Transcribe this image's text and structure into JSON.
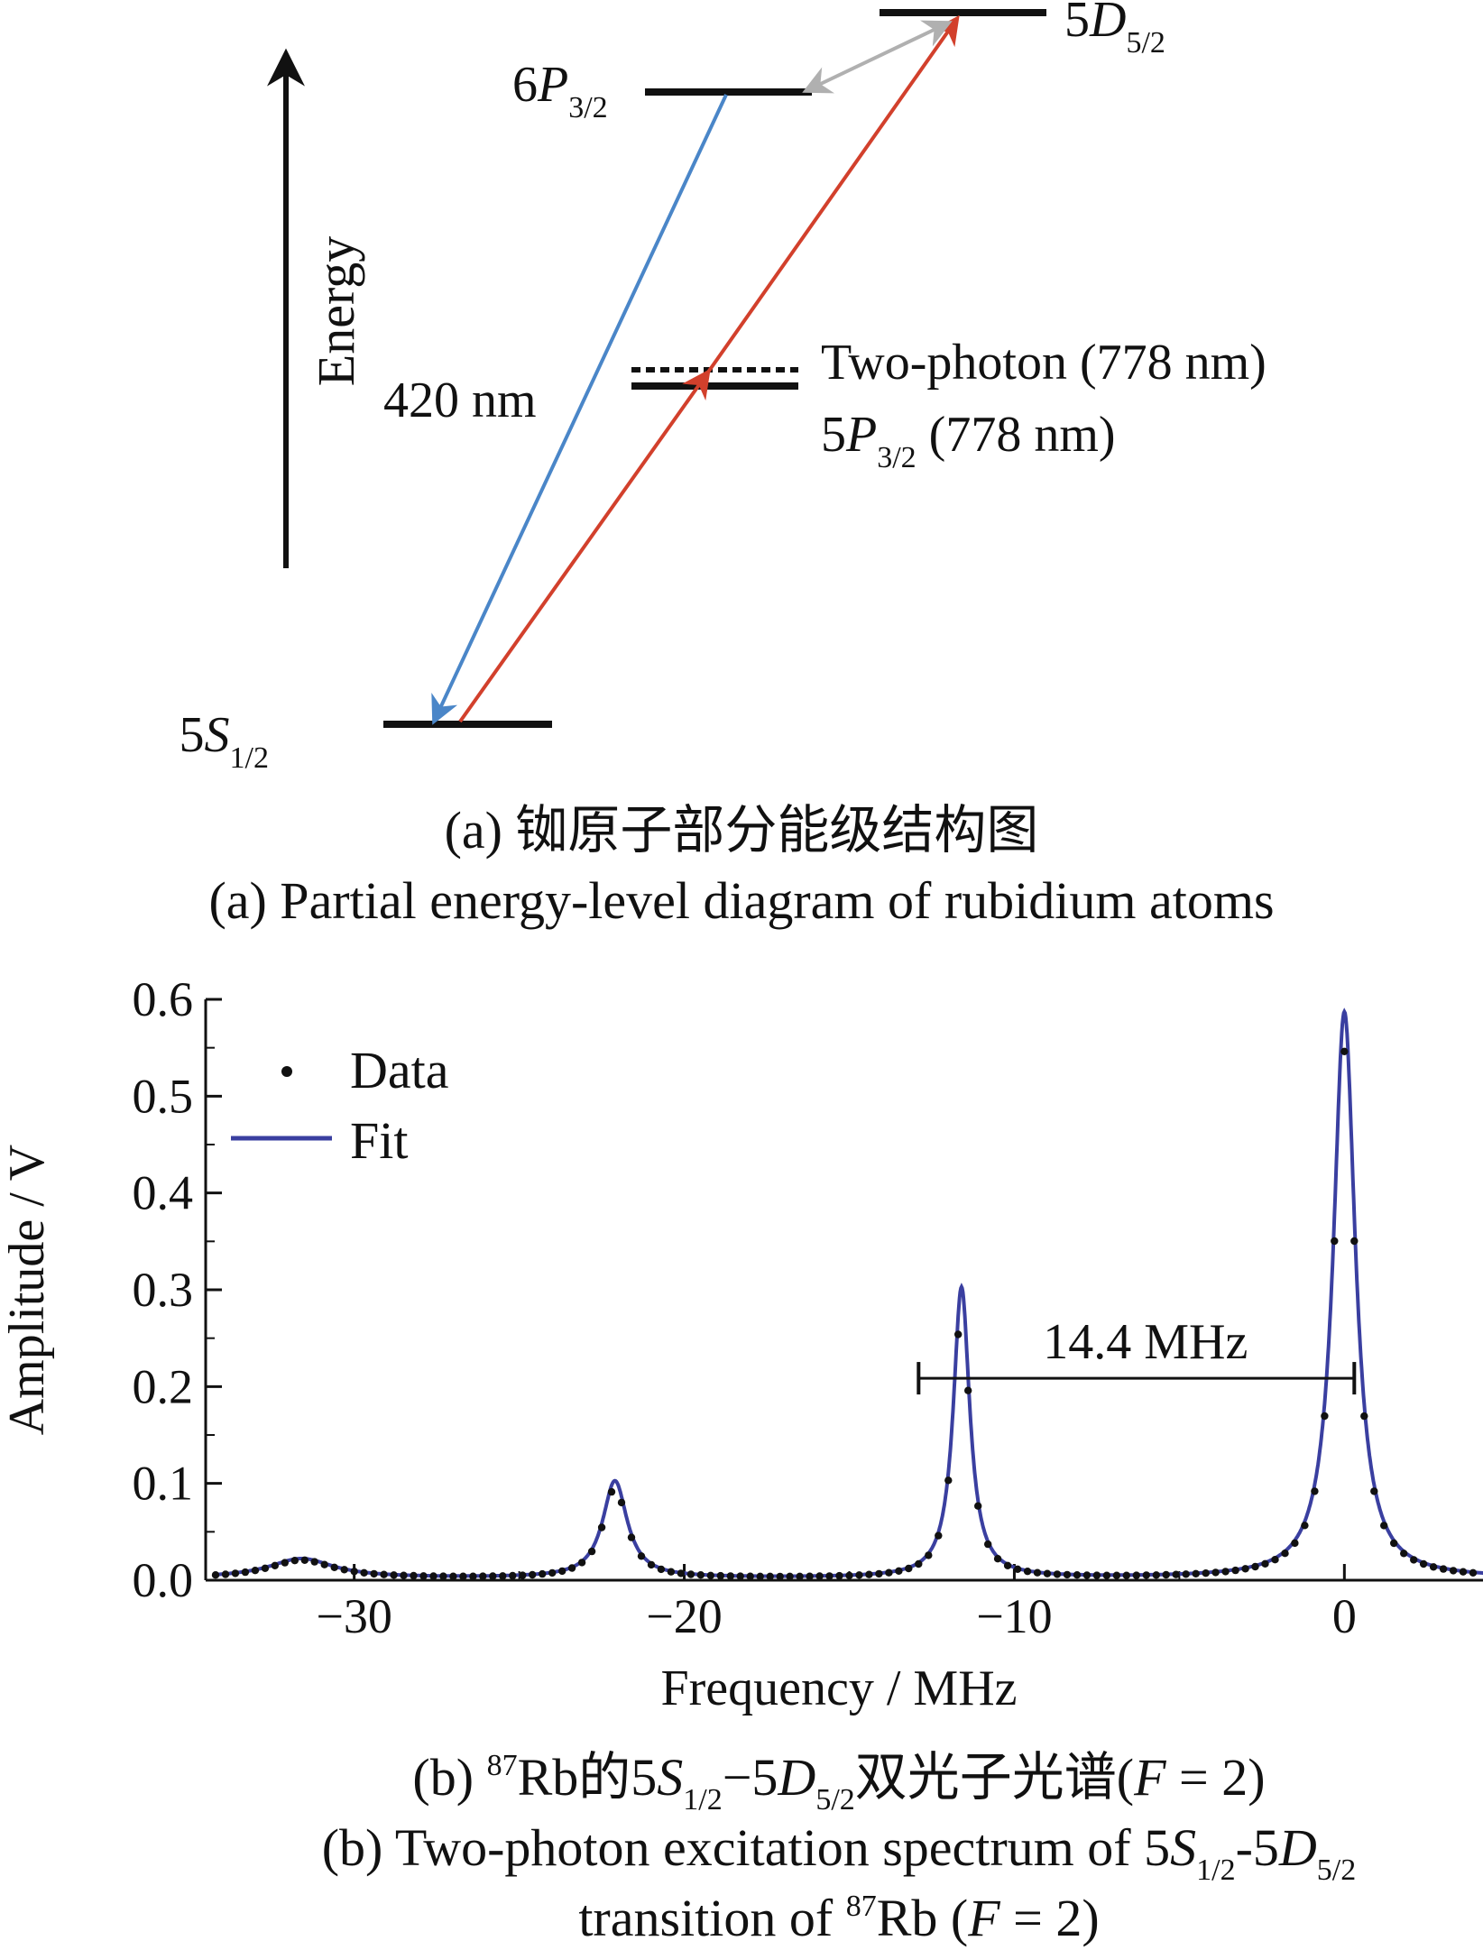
{
  "panel_a": {
    "levels": {
      "s12_main": "5",
      "s12_sym": "S",
      "s12_sub": "1/2",
      "p32_main": "6",
      "p32_sym": "P",
      "p32_sub": "3/2",
      "d52_main": "5",
      "d52_sym": "D",
      "d52_sub": "5/2"
    },
    "energy_label": "Energy",
    "wavelength_label": "420 nm",
    "two_photon_label": "Two-photon (778 nm)",
    "p5_main": "5",
    "p5_sym": "P",
    "p5_sub": "3/2",
    "p5_rest": " (778 nm)",
    "caption_cn": "(a) 铷原子部分能级结构图",
    "caption_en": "(a) Partial energy-level diagram of rubidium atoms",
    "colors": {
      "blue_arrow": "#4a86c8",
      "red_arrow": "#d2402c",
      "gray_arrow": "#b0b0b0",
      "level": "#111111"
    }
  },
  "panel_b": {
    "caption_cn": {
      "p1": "(b) ",
      "sup1": "87",
      "p2": "Rb的5",
      "s": "S",
      "sub1": "1/2",
      "p3": "−5",
      "d": "D",
      "sub2": "5/2",
      "p4": "双光子光谱(",
      "f": "F",
      "p5": " = 2)"
    },
    "caption_en1": {
      "p1": "(b) Two-photon excitation spectrum of 5",
      "s": "S",
      "sub1": "1/2",
      "p2": "-5",
      "d": "D",
      "sub2": "5/2"
    },
    "caption_en2": {
      "p1": "transition of ",
      "sup": "87",
      "p2": "Rb (",
      "f": "F",
      "p3": " = 2)"
    },
    "annotation": "14.4 MHz",
    "colors": {
      "fit": "#3a3fa0",
      "data": "#111111"
    }
  },
  "chart_data": {
    "type": "scatter",
    "xlabel": "Frequency / MHz",
    "ylabel": "Amplitude / V",
    "xlim": [
      -34.5,
      4.2
    ],
    "ylim": [
      0.0,
      0.6
    ],
    "xticks": [
      -30,
      -20,
      -10,
      0
    ],
    "xtick_labels": [
      "−30",
      "−20",
      "−10",
      "0"
    ],
    "yticks": [
      0.0,
      0.1,
      0.2,
      0.3,
      0.4,
      0.5,
      0.6
    ],
    "ytick_labels": [
      "0.0",
      "0.1",
      "0.2",
      "0.3",
      "0.4",
      "0.5",
      "0.6"
    ],
    "legend": {
      "placement": "top-left",
      "entries": [
        "Data",
        "Fit"
      ]
    },
    "series": [
      {
        "name": "Data",
        "kind": "points"
      },
      {
        "name": "Fit",
        "kind": "line"
      }
    ],
    "peaks": [
      {
        "center": -31.6,
        "amplitude": 0.02,
        "hwhm": 1.2
      },
      {
        "center": -22.1,
        "amplitude": 0.1,
        "hwhm": 0.45
      },
      {
        "center": -11.6,
        "amplitude": 0.3,
        "hwhm": 0.3
      },
      {
        "center": 0.0,
        "amplitude": 0.585,
        "hwhm": 0.4
      }
    ],
    "annotation": {
      "text": "14.4 MHz",
      "x_start": -12.9,
      "x_end": 0.3,
      "y": 0.19
    },
    "x_step": 0.3,
    "x_start": -34.2,
    "x_end": 4.2
  }
}
